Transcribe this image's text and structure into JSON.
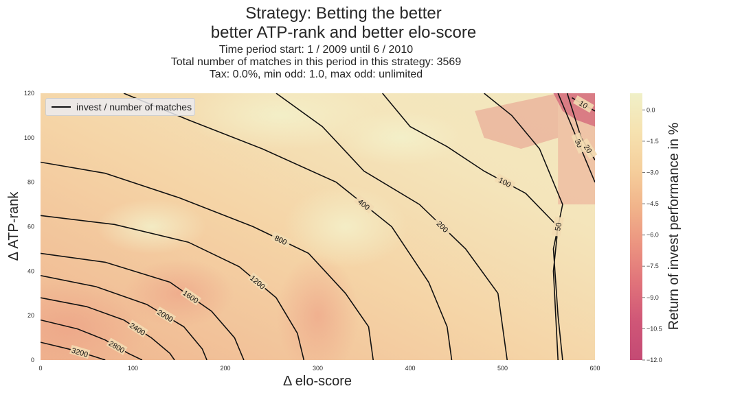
{
  "title": {
    "line1": "Strategy: Betting the better",
    "line2": "better ATP-rank and better elo-score"
  },
  "subtitle": {
    "line1": "Time period start: 1 / 2009 until 6 / 2010",
    "line2": "Total number of matches in this period in this strategy: 3569",
    "line3": "Tax: 0.0%, min odd: 1.0, max odd: unlimited"
  },
  "legend": {
    "label": "invest / number of matches"
  },
  "chart_data": {
    "type": "heatmap",
    "xlabel": "Δ elo-score",
    "ylabel": "Δ ATP-rank",
    "xlim": [
      0,
      600
    ],
    "ylim": [
      0,
      120
    ],
    "x_ticks": [
      "0",
      "100",
      "200",
      "300",
      "400",
      "500",
      "600"
    ],
    "y_ticks": [
      "0",
      "20",
      "40",
      "60",
      "80",
      "100",
      "120"
    ],
    "colorbar": {
      "label": "Return of invest performance in %",
      "ticks": [
        "0.0",
        "−1.5",
        "−3.0",
        "−4.5",
        "−6.0",
        "−7.5",
        "−9.0",
        "−10.5",
        "−12.0"
      ],
      "range": [
        -12.0,
        0.8
      ],
      "colors": [
        "#f0f0c8",
        "#f6e2b0",
        "#f5cf9c",
        "#f1b38a",
        "#eb9380",
        "#e0727a",
        "#cf5677",
        "#c44a74"
      ]
    },
    "contour_series": {
      "name": "invest / number of matches",
      "levels": [
        {
          "label": "3200",
          "points": [
            [
              0,
              8
            ],
            [
              30,
              5
            ],
            [
              55,
              2
            ],
            [
              70,
              0
            ]
          ]
        },
        {
          "label": "2800",
          "points": [
            [
              0,
              18
            ],
            [
              40,
              14
            ],
            [
              70,
              9
            ],
            [
              95,
              3
            ],
            [
              110,
              0
            ]
          ]
        },
        {
          "label": "2400",
          "points": [
            [
              0,
              28
            ],
            [
              50,
              24
            ],
            [
              90,
              18
            ],
            [
              120,
              10
            ],
            [
              140,
              3
            ],
            [
              145,
              0
            ]
          ]
        },
        {
          "label": "2000",
          "points": [
            [
              0,
              38
            ],
            [
              60,
              33
            ],
            [
              115,
              25
            ],
            [
              155,
              15
            ],
            [
              175,
              5
            ],
            [
              180,
              0
            ]
          ]
        },
        {
          "label": "1600",
          "points": [
            [
              0,
              48
            ],
            [
              70,
              44
            ],
            [
              140,
              35
            ],
            [
              185,
              22
            ],
            [
              210,
              10
            ],
            [
              220,
              0
            ]
          ]
        },
        {
          "label": "1200",
          "points": [
            [
              0,
              65
            ],
            [
              80,
              61
            ],
            [
              160,
              53
            ],
            [
              215,
              42
            ],
            [
              255,
              28
            ],
            [
              278,
              12
            ],
            [
              285,
              0
            ]
          ]
        },
        {
          "label": "800",
          "points": [
            [
              0,
              89
            ],
            [
              70,
              84
            ],
            [
              150,
              73
            ],
            [
              230,
              60
            ],
            [
              290,
              48
            ],
            [
              330,
              30
            ],
            [
              355,
              15
            ],
            [
              360,
              0
            ]
          ]
        },
        {
          "label": "400",
          "points": [
            [
              90,
              120
            ],
            [
              160,
              108
            ],
            [
              240,
              95
            ],
            [
              320,
              80
            ],
            [
              380,
              60
            ],
            [
              420,
              35
            ],
            [
              440,
              15
            ],
            [
              445,
              0
            ]
          ]
        },
        {
          "label": "200",
          "points": [
            [
              255,
              120
            ],
            [
              305,
              105
            ],
            [
              350,
              85
            ],
            [
              410,
              70
            ],
            [
              460,
              50
            ],
            [
              495,
              30
            ],
            [
              505,
              0
            ]
          ]
        },
        {
          "label": "100",
          "points": [
            [
              370,
              120
            ],
            [
              400,
              105
            ],
            [
              440,
              96
            ],
            [
              480,
              85
            ],
            [
              525,
              75
            ],
            [
              560,
              60
            ],
            [
              555,
              40
            ],
            [
              560,
              0
            ]
          ]
        },
        {
          "label": "50",
          "points": [
            [
              480,
              120
            ],
            [
              510,
              110
            ],
            [
              540,
              95
            ],
            [
              565,
              70
            ],
            [
              555,
              50
            ],
            [
              560,
              20
            ],
            [
              565,
              0
            ]
          ]
        },
        {
          "label": "30",
          "points": [
            [
              560,
              120
            ],
            [
              575,
              105
            ],
            [
              590,
              90
            ],
            [
              600,
              80
            ]
          ]
        },
        {
          "label": "20",
          "points": [
            [
              570,
              120
            ],
            [
              585,
              100
            ],
            [
              600,
              90
            ]
          ]
        },
        {
          "label": "10",
          "points": [
            [
              575,
              118
            ],
            [
              600,
              112
            ]
          ]
        }
      ]
    }
  }
}
